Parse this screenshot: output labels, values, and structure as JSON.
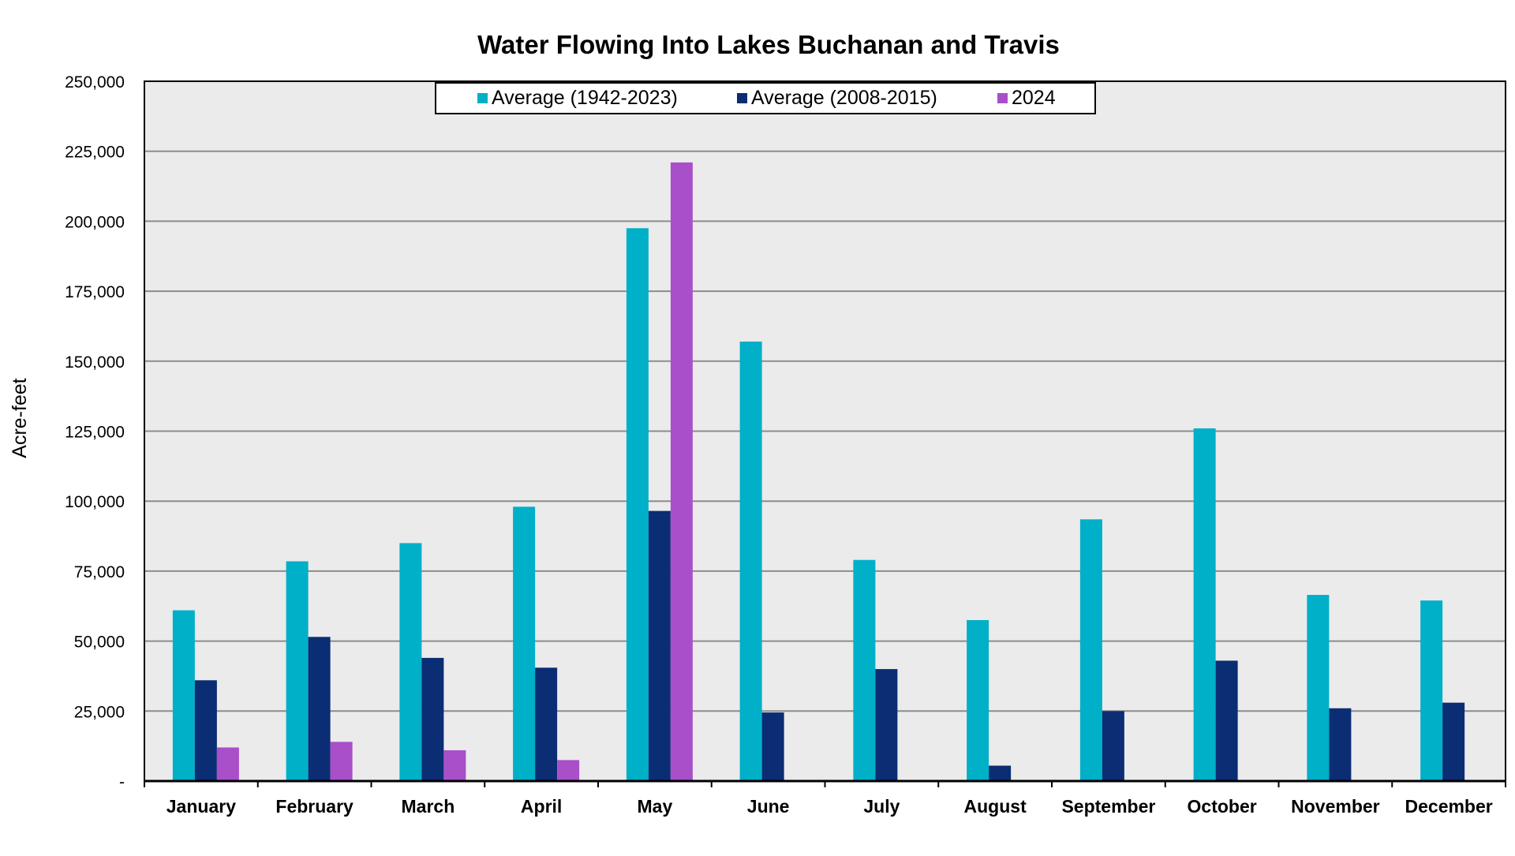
{
  "chart_data": {
    "type": "bar",
    "title": "Water Flowing Into Lakes Buchanan and Travis",
    "xlabel": "",
    "ylabel": "Acre-feet",
    "ylim": [
      0,
      250000
    ],
    "yticks": [
      0,
      25000,
      50000,
      75000,
      100000,
      125000,
      150000,
      175000,
      200000,
      225000,
      250000
    ],
    "ytick_labels": [
      "-",
      "25,000",
      "50,000",
      "75,000",
      "100,000",
      "125,000",
      "150,000",
      "175,000",
      "200,000",
      "225,000",
      "250,000"
    ],
    "grid": true,
    "legend_position": "top-center",
    "categories": [
      "January",
      "February",
      "March",
      "April",
      "May",
      "June",
      "July",
      "August",
      "September",
      "October",
      "November",
      "December"
    ],
    "series": [
      {
        "name": "Average (1942-2023)",
        "color": "#00AFC8",
        "values": [
          61000,
          78500,
          85000,
          98000,
          197500,
          157000,
          79000,
          57500,
          93500,
          126000,
          66500,
          64500
        ]
      },
      {
        "name": "Average (2008-2015)",
        "color": "#0B2D73",
        "values": [
          36000,
          51500,
          44000,
          40500,
          96500,
          24500,
          40000,
          5500,
          25000,
          43000,
          26000,
          28000
        ]
      },
      {
        "name": "2024",
        "color": "#A94FC9",
        "values": [
          12000,
          14000,
          11000,
          7500,
          221000,
          null,
          null,
          null,
          null,
          null,
          null,
          null
        ]
      }
    ]
  }
}
